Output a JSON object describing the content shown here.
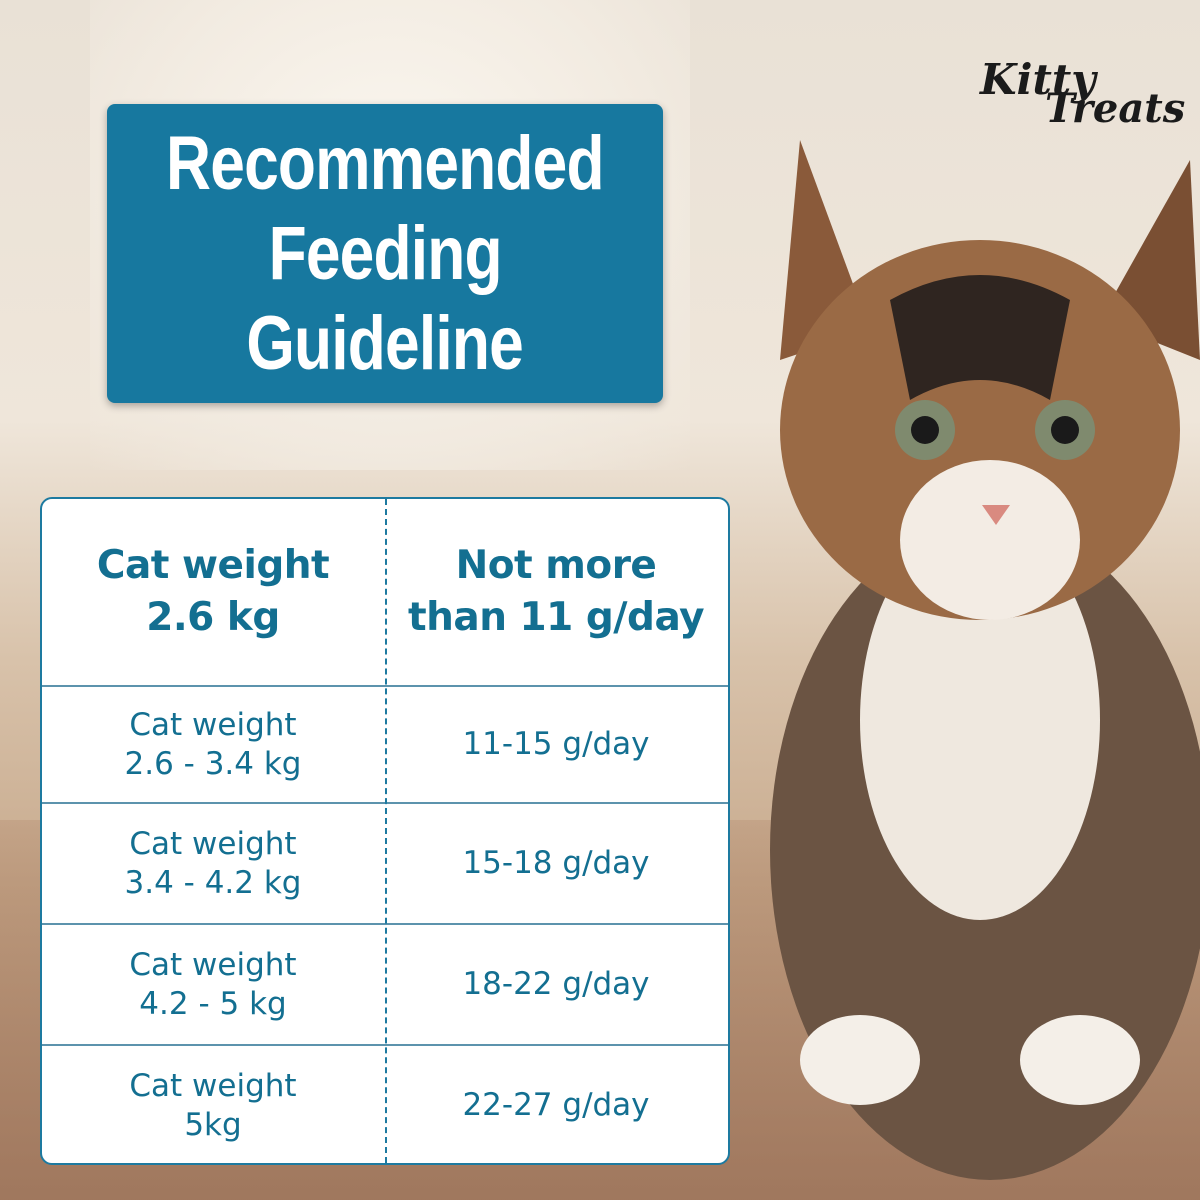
{
  "logo": {
    "text": "Kitty Treats",
    "line1": "Kitty",
    "line2": "Treats"
  },
  "title": {
    "lines": [
      "Recommended",
      "Feeding",
      "Guideline"
    ]
  },
  "table": {
    "header": {
      "weight": [
        "Cat weight",
        "2.6 kg"
      ],
      "amount": [
        "Not more",
        "than 11 g/day"
      ]
    },
    "rows": [
      {
        "weight": [
          "Cat weight",
          "2.6 - 3.4 kg"
        ],
        "amount": "11-15 g/day"
      },
      {
        "weight": [
          "Cat weight",
          "3.4 - 4.2 kg"
        ],
        "amount": "15-18 g/day"
      },
      {
        "weight": [
          "Cat weight",
          "4.2 - 5 kg"
        ],
        "amount": "18-22 g/day"
      },
      {
        "weight": [
          "Cat weight",
          "5kg"
        ],
        "amount": "22-27 g/day"
      }
    ]
  },
  "colors": {
    "brand": "#17789f",
    "text": "#136f91"
  }
}
